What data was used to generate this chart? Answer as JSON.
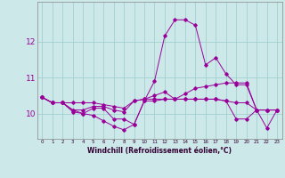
{
  "xlabel": "Windchill (Refroidissement éolien,°C)",
  "background_color": "#cce8e8",
  "grid_color": "#99cccc",
  "line_color": "#990099",
  "x_ticks": [
    0,
    1,
    2,
    3,
    4,
    5,
    6,
    7,
    8,
    9,
    10,
    11,
    12,
    13,
    14,
    15,
    16,
    17,
    18,
    19,
    20,
    21,
    22,
    23
  ],
  "y_ticks": [
    10,
    11,
    12
  ],
  "ylim": [
    9.3,
    13.1
  ],
  "xlim": [
    -0.5,
    23.5
  ],
  "series": [
    [
      10.45,
      10.3,
      10.3,
      10.3,
      10.3,
      10.3,
      10.25,
      10.2,
      10.15,
      10.35,
      10.4,
      10.5,
      10.6,
      10.4,
      10.55,
      10.7,
      10.75,
      10.8,
      10.85,
      10.85,
      10.85,
      10.1,
      10.1,
      10.1
    ],
    [
      10.45,
      10.3,
      10.3,
      10.05,
      10.0,
      9.95,
      9.8,
      9.65,
      9.55,
      9.7,
      10.35,
      10.9,
      12.15,
      12.6,
      12.6,
      12.45,
      11.35,
      11.55,
      11.1,
      10.8,
      10.8,
      10.1,
      9.6,
      10.1
    ],
    [
      10.45,
      10.3,
      10.3,
      10.1,
      10.0,
      10.15,
      10.15,
      9.85,
      9.85,
      9.7,
      10.35,
      10.35,
      10.4,
      10.4,
      10.4,
      10.4,
      10.4,
      10.4,
      10.35,
      9.85,
      9.85,
      10.1,
      10.1,
      10.1
    ],
    [
      10.45,
      10.3,
      10.3,
      10.1,
      10.1,
      10.2,
      10.2,
      10.1,
      10.05,
      10.35,
      10.4,
      10.4,
      10.4,
      10.4,
      10.4,
      10.4,
      10.4,
      10.4,
      10.35,
      10.3,
      10.3,
      10.1,
      10.1,
      10.1
    ]
  ]
}
